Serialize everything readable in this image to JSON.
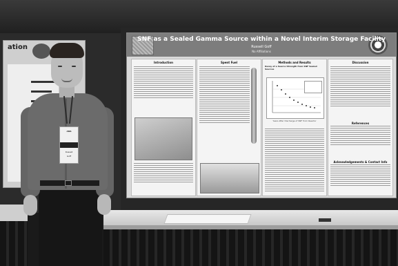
{
  "left_poster": {
    "title": "ation"
  },
  "poster": {
    "title": "SNF as a Sealed Gamma Source within a Novel Interim Storage Facility",
    "author": "Russell Goff",
    "affiliation": "No Affiliations",
    "sections": {
      "introduction": "Introduction",
      "spent_fuel": "Spent Fuel",
      "methods_results": "Methods and Results",
      "discussion": "Discussion",
      "graph_title": "Decay of a Source Strength from SNF Sealed Sources",
      "references": "References",
      "acknowledgements": "Acknowledgements & Contact Info"
    },
    "chart": {
      "type": "scatter",
      "ylabel": "Gamma Source Strength",
      "xlabel": "Years After Discharge of SNF from Reactor"
    }
  },
  "badge": {
    "org": "ANS",
    "line1": "Russell",
    "line2": "Goff"
  }
}
